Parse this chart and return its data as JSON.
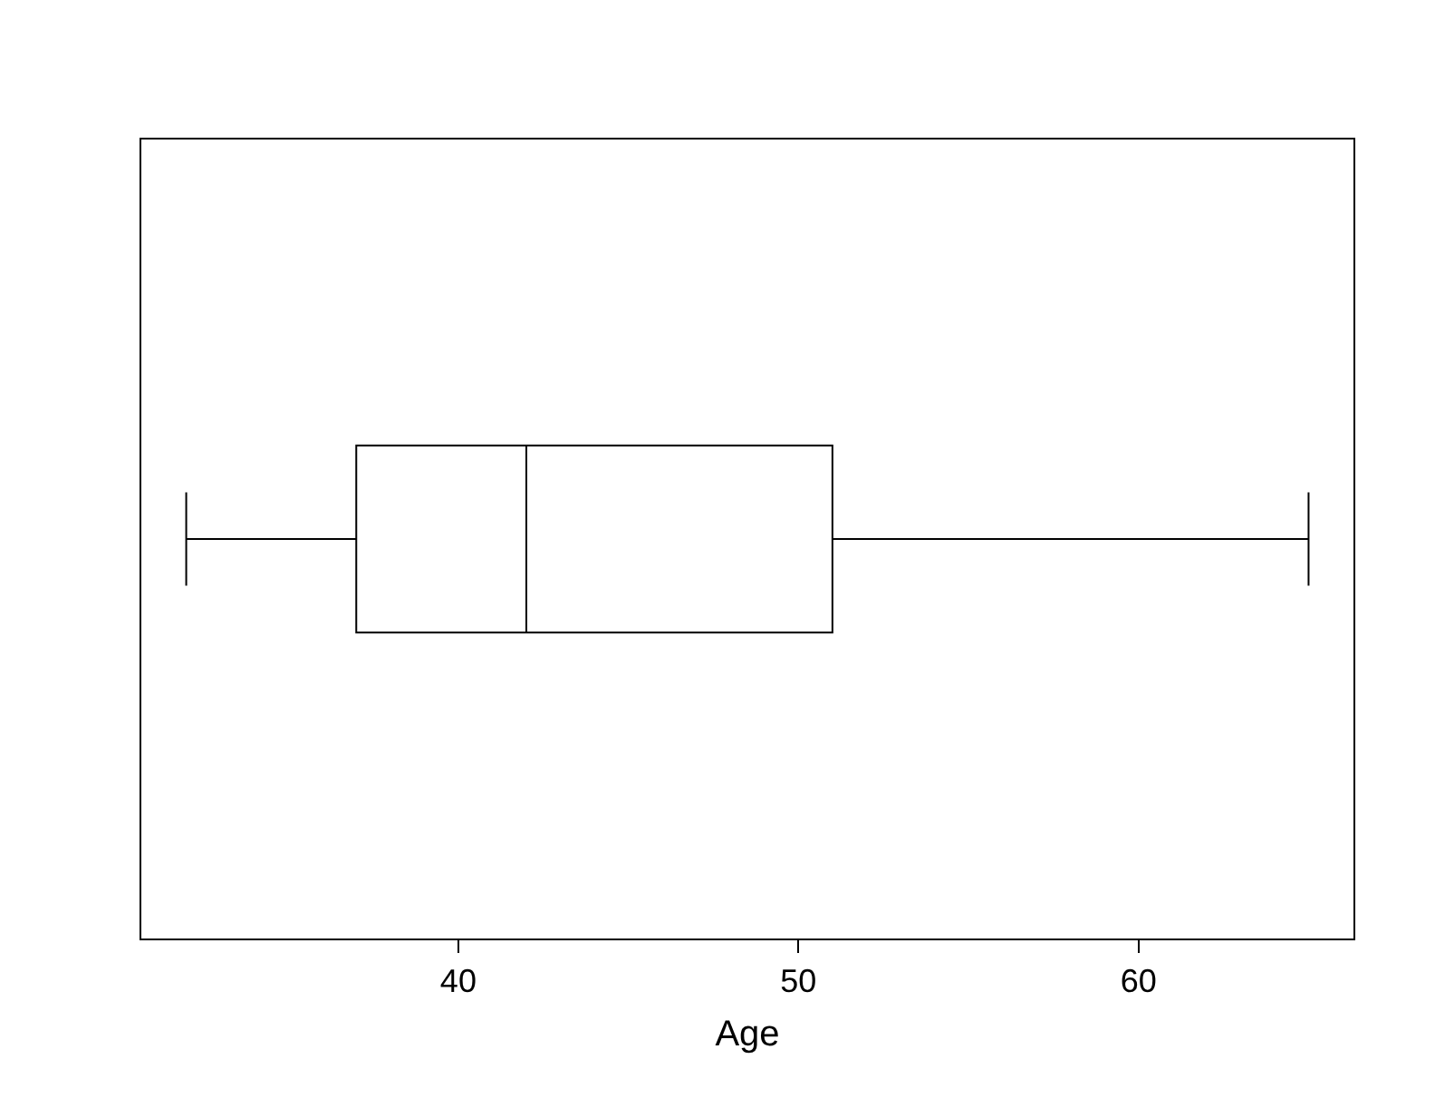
{
  "chart_data": {
    "type": "box",
    "orientation": "horizontal",
    "xlabel": "Age",
    "categories": [
      null
    ],
    "boxes": [
      {
        "low": 32,
        "q1": 37,
        "median": 42,
        "q3": 51,
        "high": 65
      }
    ],
    "xlim": [
      30.68,
      66.32
    ],
    "xticks": [
      40,
      50,
      60
    ],
    "tick_labels": "x",
    "grid": false,
    "legend": false,
    "color": "#000000"
  }
}
